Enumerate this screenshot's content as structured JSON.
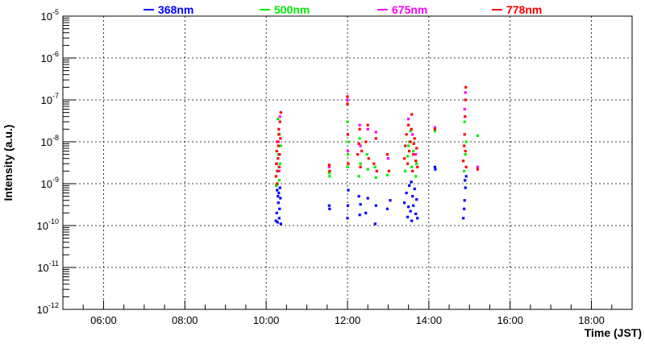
{
  "chart_data": {
    "type": "scatter",
    "xlabel": "Time (JST)",
    "ylabel": "Intensity (a.u.)",
    "x_unit": "hours (JST)",
    "xlim": [
      5.0,
      19.0
    ],
    "ylim": [
      1e-12,
      1e-05
    ],
    "y_scale": "log",
    "grid": true,
    "legend_position": "top",
    "x_ticks": [
      "06:00",
      "08:00",
      "10:00",
      "12:00",
      "14:00",
      "16:00",
      "18:00"
    ],
    "x_tick_values": [
      6,
      8,
      10,
      12,
      14,
      16,
      18
    ],
    "y_ticks": [
      {
        "base": "10",
        "exp": "-12",
        "value": 1e-12
      },
      {
        "base": "10",
        "exp": "-11",
        "value": 1e-11
      },
      {
        "base": "10",
        "exp": "-10",
        "value": 1e-10
      },
      {
        "base": "10",
        "exp": "-9",
        "value": 1e-09
      },
      {
        "base": "10",
        "exp": "-8",
        "value": 1e-08
      },
      {
        "base": "10",
        "exp": "-7",
        "value": 1e-07
      },
      {
        "base": "10",
        "exp": "-6",
        "value": 1e-06
      },
      {
        "base": "10",
        "exp": "-5",
        "value": 1e-05
      }
    ],
    "series": [
      {
        "name": "368nm",
        "color": "#0000ff",
        "points": [
          [
            10.24,
            1.3e-10
          ],
          [
            10.26,
            2e-10
          ],
          [
            10.28,
            1.2e-10
          ],
          [
            10.3,
            3.5e-10
          ],
          [
            10.31,
            6e-10
          ],
          [
            10.32,
            1.5e-10
          ],
          [
            10.33,
            2.5e-10
          ],
          [
            10.34,
            8e-10
          ],
          [
            10.35,
            4.5e-10
          ],
          [
            10.36,
            1.1e-10
          ],
          [
            10.29,
            5e-10
          ],
          [
            10.27,
            7e-10
          ],
          [
            10.25,
            9e-10
          ],
          [
            11.55,
            3e-10
          ],
          [
            11.56,
            2.5e-10
          ],
          [
            12.0,
            1.5e-10
          ],
          [
            12.01,
            3e-10
          ],
          [
            12.02,
            7e-10
          ],
          [
            12.28,
            5e-10
          ],
          [
            12.3,
            1.8e-10
          ],
          [
            12.32,
            3.2e-10
          ],
          [
            12.45,
            2e-10
          ],
          [
            12.5,
            4.5e-10
          ],
          [
            12.68,
            1.1e-10
          ],
          [
            12.7,
            3e-10
          ],
          [
            12.98,
            2.5e-10
          ],
          [
            13.05,
            4e-10
          ],
          [
            13.4,
            3.5e-10
          ],
          [
            13.45,
            6e-10
          ],
          [
            13.48,
            1.6e-10
          ],
          [
            13.52,
            9e-10
          ],
          [
            13.55,
            2.2e-10
          ],
          [
            13.58,
            1.3e-10
          ],
          [
            13.6,
            5e-10
          ],
          [
            13.62,
            3e-10
          ],
          [
            13.65,
            7.5e-10
          ],
          [
            13.68,
            1.9e-10
          ],
          [
            13.7,
            4.2e-10
          ],
          [
            13.72,
            1.5e-10
          ],
          [
            13.5,
            2.8e-10
          ],
          [
            13.57,
            1.1e-09
          ],
          [
            14.15,
            2.5e-09
          ],
          [
            14.16,
            2.2e-09
          ],
          [
            14.85,
            1.5e-10
          ],
          [
            14.87,
            2.5e-10
          ],
          [
            14.88,
            4e-10
          ],
          [
            14.9,
            8e-10
          ],
          [
            14.92,
            1.5e-09
          ],
          [
            14.89,
            1.2e-09
          ]
        ]
      },
      {
        "name": "500nm",
        "color": "#00ee00",
        "points": [
          [
            10.25,
            9e-10
          ],
          [
            10.27,
            2e-09
          ],
          [
            10.3,
            5e-09
          ],
          [
            10.32,
            1.2e-09
          ],
          [
            10.34,
            3e-09
          ],
          [
            10.36,
            8e-09
          ],
          [
            10.28,
            1e-09
          ],
          [
            10.33,
            1.5e-08
          ],
          [
            10.29,
            3.5e-08
          ],
          [
            11.55,
            1.8e-09
          ],
          [
            11.56,
            1.5e-09
          ],
          [
            12.0,
            2.5e-09
          ],
          [
            12.01,
            5e-09
          ],
          [
            12.02,
            1e-08
          ],
          [
            12.0,
            3e-08
          ],
          [
            12.28,
            1.5e-09
          ],
          [
            12.32,
            3e-09
          ],
          [
            12.3,
            1.2e-08
          ],
          [
            12.5,
            2.2e-09
          ],
          [
            12.48,
            5e-09
          ],
          [
            12.7,
            1.4e-09
          ],
          [
            12.68,
            2.5e-09
          ],
          [
            12.98,
            1.6e-09
          ],
          [
            13.42,
            2e-09
          ],
          [
            13.48,
            4.5e-09
          ],
          [
            13.52,
            1e-08
          ],
          [
            13.58,
            2.5e-09
          ],
          [
            13.62,
            6e-09
          ],
          [
            13.68,
            1.5e-09
          ],
          [
            13.7,
            3e-09
          ],
          [
            13.55,
            1.8e-08
          ],
          [
            13.5,
            8e-09
          ],
          [
            14.15,
            1.8e-08
          ],
          [
            14.87,
            2e-09
          ],
          [
            14.9,
            5e-09
          ],
          [
            14.92,
            1e-08
          ],
          [
            14.88,
            3e-08
          ],
          [
            15.2,
            1.4e-08
          ]
        ]
      },
      {
        "name": "675nm",
        "color": "#ff00ff",
        "points": [
          [
            10.26,
            3e-09
          ],
          [
            10.3,
            1e-08
          ],
          [
            10.34,
            4e-08
          ],
          [
            10.32,
            2e-09
          ],
          [
            11.55,
            2.5e-09
          ],
          [
            12.01,
            6e-09
          ],
          [
            12.0,
            1e-07
          ],
          [
            12.3,
            2.5e-08
          ],
          [
            12.32,
            8e-09
          ],
          [
            12.5,
            2e-08
          ],
          [
            12.7,
            1.7e-08
          ],
          [
            13.0,
            4e-09
          ],
          [
            13.5,
            3.5e-08
          ],
          [
            13.6,
            1.5e-08
          ],
          [
            13.68,
            5e-09
          ],
          [
            14.15,
            2.2e-08
          ],
          [
            14.9,
            1.5e-07
          ],
          [
            14.88,
            6e-08
          ],
          [
            15.2,
            2.5e-09
          ]
        ]
      },
      {
        "name": "778nm",
        "color": "#ff0000",
        "points": [
          [
            10.24,
            1.5e-09
          ],
          [
            10.25,
            3e-09
          ],
          [
            10.26,
            6e-09
          ],
          [
            10.27,
            1e-08
          ],
          [
            10.28,
            2e-09
          ],
          [
            10.29,
            4e-09
          ],
          [
            10.3,
            8e-09
          ],
          [
            10.31,
            1.5e-08
          ],
          [
            10.32,
            2.5e-09
          ],
          [
            10.33,
            5e-09
          ],
          [
            10.34,
            3e-08
          ],
          [
            10.35,
            1.2e-08
          ],
          [
            10.36,
            5e-08
          ],
          [
            10.31,
            2e-08
          ],
          [
            10.27,
            1e-09
          ],
          [
            11.55,
            2.8e-09
          ],
          [
            11.56,
            2e-09
          ],
          [
            12.0,
            8e-08
          ],
          [
            12.0,
            1.2e-07
          ],
          [
            12.01,
            1.5e-08
          ],
          [
            12.02,
            3e-09
          ],
          [
            12.25,
            5e-09
          ],
          [
            12.28,
            9e-09
          ],
          [
            12.3,
            2e-08
          ],
          [
            12.32,
            2.5e-09
          ],
          [
            12.35,
            6e-09
          ],
          [
            12.45,
            1e-08
          ],
          [
            12.5,
            2.5e-08
          ],
          [
            12.52,
            4e-09
          ],
          [
            12.65,
            3e-09
          ],
          [
            12.7,
            1.2e-08
          ],
          [
            12.72,
            2e-09
          ],
          [
            12.98,
            5e-09
          ],
          [
            13.02,
            2e-09
          ],
          [
            13.4,
            4e-09
          ],
          [
            13.42,
            8e-09
          ],
          [
            13.45,
            1.5e-08
          ],
          [
            13.48,
            3e-09
          ],
          [
            13.5,
            2.5e-08
          ],
          [
            13.52,
            6e-09
          ],
          [
            13.55,
            1e-08
          ],
          [
            13.58,
            4.5e-08
          ],
          [
            13.6,
            2e-09
          ],
          [
            13.62,
            5e-09
          ],
          [
            13.65,
            1.2e-08
          ],
          [
            13.68,
            3.5e-09
          ],
          [
            13.7,
            7e-09
          ],
          [
            13.72,
            2.5e-09
          ],
          [
            13.57,
            2e-08
          ],
          [
            13.63,
            9e-09
          ],
          [
            14.15,
            2e-08
          ],
          [
            14.85,
            3.5e-09
          ],
          [
            14.87,
            8e-09
          ],
          [
            14.88,
            1.5e-08
          ],
          [
            14.89,
            4e-08
          ],
          [
            14.9,
            1e-07
          ],
          [
            14.91,
            2e-07
          ],
          [
            14.92,
            2.5e-09
          ],
          [
            14.9,
            6e-09
          ],
          [
            15.2,
            2.2e-09
          ]
        ]
      }
    ]
  }
}
